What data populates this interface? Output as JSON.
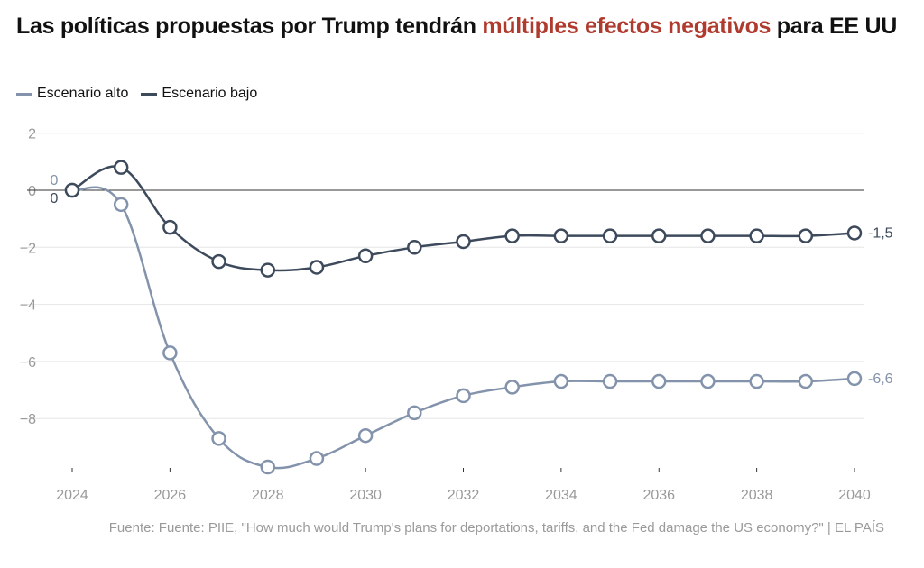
{
  "header": {
    "title_pre": "Las políticas propuestas por Trump tendrán ",
    "title_highlight": "múltiples efectos negativos",
    "title_post": " para EE UU"
  },
  "legend": [
    {
      "label": "Escenario alto",
      "color": "#8393ab"
    },
    {
      "label": "Escenario bajo",
      "color": "#3d4a5c"
    }
  ],
  "source": "Fuente: Fuente: PIIE, \"How much would Trump's plans for deportations, tariffs, and the Fed damage the US economy?\" | EL PAÍS",
  "chart_data": {
    "type": "line",
    "title": "Las políticas propuestas por Trump tendrán múltiples efectos negativos para EE UU",
    "xlabel": "",
    "ylabel": "",
    "x": [
      2024,
      2025,
      2026,
      2027,
      2028,
      2029,
      2030,
      2031,
      2032,
      2033,
      2034,
      2035,
      2036,
      2037,
      2038,
      2039,
      2040
    ],
    "xticks": [
      2024,
      2026,
      2028,
      2030,
      2032,
      2034,
      2036,
      2038,
      2040
    ],
    "xlim": [
      2024,
      2040
    ],
    "yticks": [
      2,
      0,
      -2,
      -4,
      -6,
      -8
    ],
    "ytick_labels": [
      "2",
      "0",
      "−2",
      "−4",
      "−6",
      "−8"
    ],
    "ylim": [
      -9.8,
      2
    ],
    "grid": true,
    "legend_position": "top-left",
    "series": [
      {
        "name": "Escenario alto",
        "color": "#8393ab",
        "values": [
          0,
          -0.5,
          -5.7,
          -8.7,
          -9.7,
          -9.4,
          -8.6,
          -7.8,
          -7.2,
          -6.9,
          -6.7,
          -6.7,
          -6.7,
          -6.7,
          -6.7,
          -6.7,
          -6.6
        ],
        "start_label": "0",
        "end_label": "-6,6"
      },
      {
        "name": "Escenario bajo",
        "color": "#3d4a5c",
        "values": [
          0,
          0.8,
          -1.3,
          -2.5,
          -2.8,
          -2.7,
          -2.3,
          -2.0,
          -1.8,
          -1.6,
          -1.6,
          -1.6,
          -1.6,
          -1.6,
          -1.6,
          -1.6,
          -1.5
        ],
        "start_label": "0",
        "end_label": "-1,5"
      }
    ]
  }
}
